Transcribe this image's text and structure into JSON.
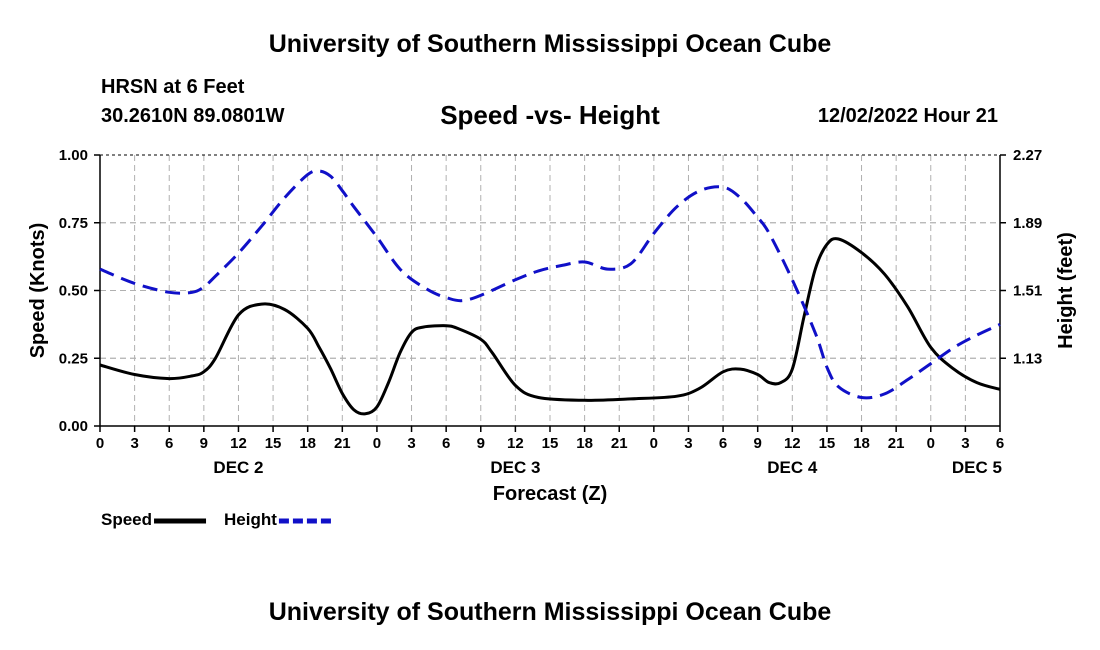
{
  "header": {
    "title_top": "University of Southern Mississippi Ocean Cube",
    "title_bottom": "University of Southern Mississippi Ocean Cube",
    "station": "HRSN at 6 Feet",
    "coords": "30.2610N  89.0801W",
    "subtitle": "Speed -vs- Height",
    "datetime": "12/02/2022 Hour 21"
  },
  "chart_data": {
    "type": "line",
    "title": "Speed -vs- Height",
    "xlabel": "Forecast (Z)",
    "ylabel": "Speed (Knots)",
    "y2label": "Height (feet)",
    "grid": true,
    "x_range": [
      0,
      78
    ],
    "ylim": [
      0,
      1
    ],
    "y2lim": [
      0.75,
      2.27
    ],
    "yticks": [
      "0.00",
      "0.25",
      "0.50",
      "0.75",
      "1.00"
    ],
    "y2ticks": [
      "1.13",
      "1.51",
      "1.89",
      "2.27"
    ],
    "y2tick_values": [
      1.13,
      1.51,
      1.89,
      2.27
    ],
    "xtick_labels": [
      "0",
      "3",
      "6",
      "9",
      "12",
      "15",
      "18",
      "21",
      "0",
      "3",
      "6",
      "9",
      "12",
      "15",
      "18",
      "21",
      "0",
      "3",
      "6",
      "9",
      "12",
      "15",
      "18",
      "21",
      "0",
      "3",
      "6"
    ],
    "day_labels": [
      {
        "label": "DEC 2",
        "x": 12
      },
      {
        "label": "DEC 3",
        "x": 36
      },
      {
        "label": "DEC 4",
        "x": 60
      },
      {
        "label": "DEC 5",
        "x": 76
      }
    ],
    "legend": [
      {
        "name": "Speed",
        "color": "#000000",
        "style": "solid"
      },
      {
        "name": "Height",
        "color": "#1010c8",
        "style": "dashed"
      }
    ],
    "series": [
      {
        "name": "Speed",
        "axis": "left",
        "color": "#000000",
        "style": "solid",
        "x": [
          0,
          3,
          6,
          8,
          9,
          10,
          12,
          14,
          16,
          18,
          19,
          20,
          21,
          22,
          23,
          24,
          25,
          26,
          27,
          28,
          30,
          31,
          33,
          34,
          36,
          38,
          42,
          46,
          50,
          52,
          54,
          55.5,
          57,
          58,
          59,
          60,
          61,
          62,
          63,
          64,
          66,
          68,
          70,
          72,
          74,
          76,
          78
        ],
        "values": [
          0.225,
          0.19,
          0.175,
          0.185,
          0.2,
          0.25,
          0.41,
          0.45,
          0.43,
          0.36,
          0.29,
          0.21,
          0.12,
          0.06,
          0.045,
          0.07,
          0.16,
          0.27,
          0.345,
          0.365,
          0.37,
          0.36,
          0.32,
          0.27,
          0.15,
          0.105,
          0.095,
          0.1,
          0.11,
          0.14,
          0.2,
          0.21,
          0.19,
          0.16,
          0.16,
          0.21,
          0.4,
          0.58,
          0.67,
          0.69,
          0.64,
          0.56,
          0.44,
          0.29,
          0.21,
          0.16,
          0.135
        ]
      },
      {
        "name": "Height",
        "axis": "right",
        "color": "#1010c8",
        "style": "dashed",
        "x": [
          0,
          3,
          6,
          8,
          9,
          10,
          12,
          14,
          16,
          18,
          19,
          20,
          21,
          22,
          24,
          26,
          28,
          30,
          32,
          36,
          38,
          40,
          42,
          44,
          46,
          48,
          50,
          52,
          54,
          55.5,
          57,
          58,
          60,
          62,
          63,
          64,
          66,
          68,
          70,
          72,
          74,
          76,
          78
        ],
        "values": [
          1.63,
          1.55,
          1.5,
          1.5,
          1.53,
          1.59,
          1.72,
          1.87,
          2.03,
          2.16,
          2.18,
          2.15,
          2.07,
          1.98,
          1.81,
          1.63,
          1.53,
          1.47,
          1.46,
          1.57,
          1.62,
          1.65,
          1.67,
          1.63,
          1.66,
          1.83,
          1.98,
          2.07,
          2.09,
          2.03,
          1.92,
          1.83,
          1.57,
          1.27,
          1.08,
          0.97,
          0.91,
          0.93,
          1.01,
          1.1,
          1.19,
          1.26,
          1.32
        ]
      }
    ]
  }
}
